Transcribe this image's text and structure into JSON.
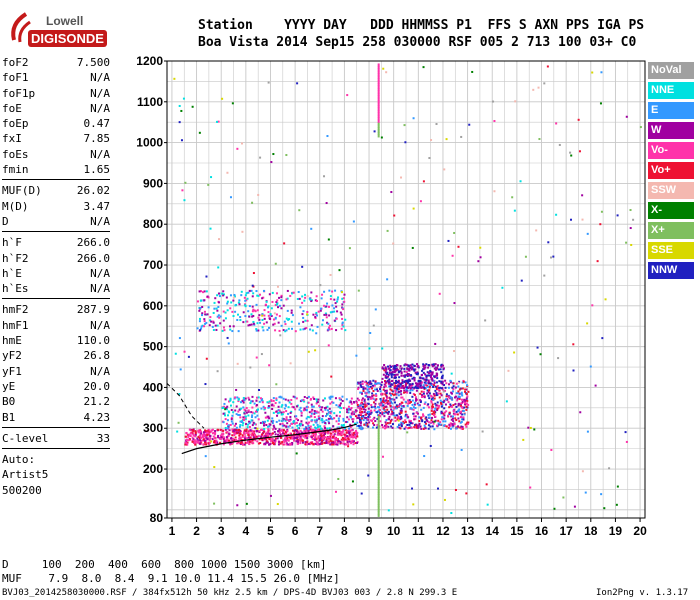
{
  "logo": {
    "brand": "Lowell",
    "product": "DIGISONDE"
  },
  "header": {
    "line1": "Station    YYYY DAY   DDD HHMMSS P1  FFS S AXN PPS IGA PS",
    "line2": "Boa Vista 2014 Sep15 258 030000 RSF 005 2 713 100 03+ C0"
  },
  "params_a": [
    {
      "name": "foF2",
      "value": "7.500"
    },
    {
      "name": "foF1",
      "value": "N/A"
    },
    {
      "name": "foF1p",
      "value": "N/A"
    },
    {
      "name": "foE",
      "value": "N/A"
    },
    {
      "name": "foEp",
      "value": "0.47"
    },
    {
      "name": "fxI",
      "value": "7.85"
    },
    {
      "name": "foEs",
      "value": "N/A"
    },
    {
      "name": "fmin",
      "value": "1.65"
    }
  ],
  "params_b": [
    {
      "name": "MUF(D)",
      "value": "26.02"
    },
    {
      "name": "M(D)",
      "value": "3.47"
    },
    {
      "name": "D",
      "value": "N/A"
    }
  ],
  "params_c": [
    {
      "name": "h`F",
      "value": "266.0"
    },
    {
      "name": "h`F2",
      "value": "266.0"
    },
    {
      "name": "h`E",
      "value": "N/A"
    },
    {
      "name": "h`Es",
      "value": "N/A"
    }
  ],
  "params_d": [
    {
      "name": "hmF2",
      "value": "287.9"
    },
    {
      "name": "hmF1",
      "value": "N/A"
    },
    {
      "name": "hmE",
      "value": "110.0"
    },
    {
      "name": "yF2",
      "value": "26.8"
    },
    {
      "name": "yF1",
      "value": "N/A"
    },
    {
      "name": "yE",
      "value": "20.0"
    },
    {
      "name": "B0",
      "value": "21.2"
    },
    {
      "name": "B1",
      "value": "4.23"
    }
  ],
  "clevel": {
    "name": "C-level",
    "value": "33"
  },
  "auto": {
    "line1": "Auto:",
    "line2": "Artist5",
    "line3": "500200"
  },
  "muf_table": {
    "d_line": "D     100  200  400  600  800 1000 1500 3000 [km]",
    "muf_line": "MUF    7.9  8.0  8.4  9.1 10.0 11.4 15.5 26.0 [MHz]"
  },
  "footer": {
    "left": "BVJ03_2014258030000.RSF / 384fx512h 50 kHz 2.5 km / DPS-4D BVJ03 003 / 2.8 N 299.3 E",
    "right": "Ion2Png v. 1.3.17"
  },
  "legend": [
    {
      "label": "NoVal",
      "color": "#a0a0a0"
    },
    {
      "label": "NNE",
      "color": "#00e0e0"
    },
    {
      "label": "E",
      "color": "#3399ff"
    },
    {
      "label": "W",
      "color": "#a000a0"
    },
    {
      "label": "Vo-",
      "color": "#ff33aa"
    },
    {
      "label": "Vo+",
      "color": "#ee1133"
    },
    {
      "label": "SSW",
      "color": "#f4b8b0"
    },
    {
      "label": "X-",
      "color": "#008000"
    },
    {
      "label": "X+",
      "color": "#7fbf5f"
    },
    {
      "label": "SSE",
      "color": "#d8d800"
    },
    {
      "label": "NNW",
      "color": "#2020c0"
    }
  ],
  "chart_data": {
    "type": "scatter",
    "xlabel": "",
    "ylabel": "",
    "xlim": [
      0.8,
      20.2
    ],
    "ylim": [
      80,
      1200
    ],
    "x_ticks": [
      1,
      2,
      3,
      4,
      5,
      6,
      7,
      8,
      9,
      10,
      11,
      12,
      13,
      14,
      15,
      16,
      17,
      18,
      19,
      20
    ],
    "y_ticks": [
      80,
      200,
      300,
      400,
      500,
      600,
      700,
      800,
      900,
      1000,
      1100,
      1200
    ],
    "grid": true,
    "trace_x_MHz": [
      1.4,
      2,
      3,
      4,
      5,
      6,
      7,
      7.5,
      8,
      8.5
    ],
    "trace_y_km": [
      238,
      250,
      262,
      271,
      278,
      284,
      292,
      296,
      302,
      310
    ]
  }
}
